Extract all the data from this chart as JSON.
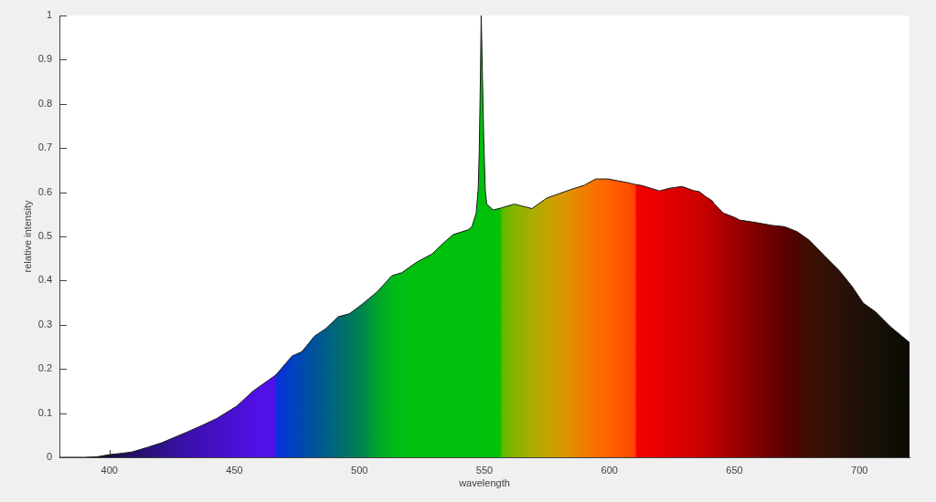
{
  "chart_data": {
    "type": "area",
    "xlabel": "wavelength",
    "ylabel": "relative intensity",
    "xlim": [
      380,
      720
    ],
    "ylim": [
      0,
      1
    ],
    "xticks": [
      400,
      450,
      500,
      550,
      600,
      650,
      700
    ],
    "yticks": [
      0,
      0.1,
      0.2,
      0.3,
      0.4,
      0.5,
      0.6,
      0.7,
      0.8,
      0.9,
      1
    ],
    "color": "#1a1a1a",
    "x": [
      380,
      390,
      395,
      400,
      405,
      409,
      415,
      421,
      426,
      431,
      437,
      443,
      451,
      457.5,
      463.5,
      466,
      467,
      473,
      477,
      482,
      486.5,
      491.5,
      496,
      501,
      507,
      513,
      517,
      523,
      529,
      534,
      537.5,
      543.5,
      545,
      546.7,
      547.5,
      547.9,
      548.3,
      548.7,
      549.7,
      550.3,
      550.9,
      553.5,
      556.5,
      557,
      562,
      569,
      575,
      584,
      590,
      594.5,
      599.5,
      607,
      610,
      611,
      613,
      620,
      624,
      629,
      633.5,
      636,
      638.5,
      641,
      642,
      645.5,
      650.5,
      652,
      658,
      665,
      670,
      675,
      680,
      686,
      692,
      697,
      701.5,
      706.5,
      712.5,
      720
    ],
    "values": [
      0,
      0,
      0.001,
      0.006,
      0.009,
      0.012,
      0.022,
      0.033,
      0.045,
      0.057,
      0.072,
      0.088,
      0.116,
      0.15,
      0.174,
      0.184,
      0.189,
      0.229,
      0.239,
      0.274,
      0.291,
      0.318,
      0.325,
      0.346,
      0.374,
      0.411,
      0.418,
      0.442,
      0.46,
      0.487,
      0.504,
      0.515,
      0.522,
      0.553,
      0.607,
      0.69,
      0.829,
      1,
      0.726,
      0.607,
      0.573,
      0.56,
      0.564,
      0.565,
      0.573,
      0.563,
      0.587,
      0.605,
      0.616,
      0.63,
      0.63,
      0.622,
      0.618,
      0.617,
      0.615,
      0.603,
      0.609,
      0.613,
      0.604,
      0.601,
      0.59,
      0.581,
      0.573,
      0.553,
      0.542,
      0.537,
      0.532,
      0.525,
      0.522,
      0.511,
      0.491,
      0.456,
      0.422,
      0.387,
      0.349,
      0.329,
      0.295,
      0.26
    ],
    "colors": [
      "#0a0512",
      "#100a22",
      "#150b30",
      "#1a0c42",
      "#200e56",
      "#250f66",
      "#2a107a",
      "#30108c",
      "#35109c",
      "#3a10aa",
      "#3f10b8",
      "#4410c6",
      "#4a10d6",
      "#5010e2",
      "#5210e8",
      "#4c10ea",
      "#0a30d8",
      "#0040c4",
      "#0048b0",
      "#00549a",
      "#005e88",
      "#006a74",
      "#007660",
      "#00844c",
      "#00a42c",
      "#00b81a",
      "#00be12",
      "#00c00c",
      "#00c00c",
      "#00c00c",
      "#00c00c",
      "#00c00c",
      "#00c00c",
      "#00c00c",
      "#00c00c",
      "#00c00c",
      "#00c00c",
      "#00c00c",
      "#00c00c",
      "#00c00c",
      "#00c00c",
      "#00c00c",
      "#10c000",
      "#60b800",
      "#84b400",
      "#a8ae00",
      "#c4a400",
      "#e09000",
      "#f07c00",
      "#f87000",
      "#ff6400",
      "#ff5000",
      "#ff4400",
      "#f40000",
      "#f00000",
      "#e80000",
      "#e00000",
      "#d80000",
      "#d00000",
      "#ca0000",
      "#c40000",
      "#bc0000",
      "#b80000",
      "#ac0000",
      "#9c0000",
      "#980000",
      "#800000",
      "#6c0000",
      "#5c0000",
      "#4c0400",
      "#3c1000",
      "#341008",
      "#2c1008",
      "#241008",
      "#1e1008",
      "#181006",
      "#120e04",
      "#0a0a02"
    ]
  }
}
